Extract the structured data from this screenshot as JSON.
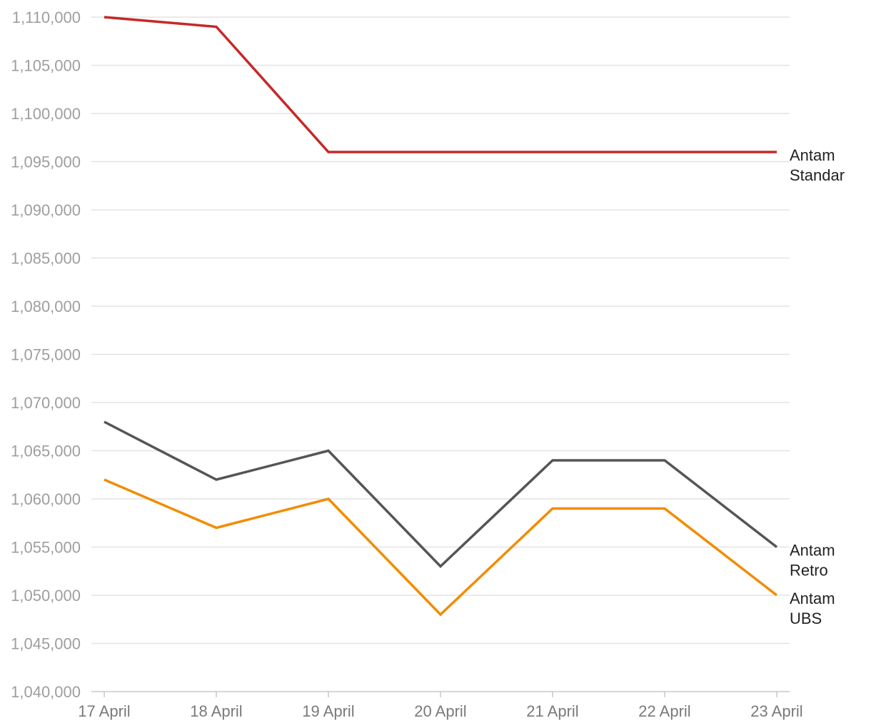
{
  "chart_data": {
    "type": "line",
    "title": "",
    "xlabel": "",
    "ylabel": "",
    "categories": [
      "17 April",
      "18 April",
      "19 April",
      "20 April",
      "21 April",
      "22 April",
      "23 April"
    ],
    "ylim": [
      1040000,
      1110000
    ],
    "yticks": [
      1040000,
      1045000,
      1050000,
      1055000,
      1060000,
      1065000,
      1070000,
      1075000,
      1080000,
      1085000,
      1090000,
      1095000,
      1100000,
      1105000,
      1110000
    ],
    "ytick_labels": [
      "1,040,000",
      "1,045,000",
      "1,050,000",
      "1,055,000",
      "1,060,000",
      "1,065,000",
      "1,070,000",
      "1,075,000",
      "1,080,000",
      "1,085,000",
      "1,090,000",
      "1,095,000",
      "1,100,000",
      "1,105,000",
      "1,110,000"
    ],
    "grid": true,
    "legend": "end-of-line labels",
    "series": [
      {
        "name": "Antam Standar",
        "label_lines": [
          "Antam",
          "Standar"
        ],
        "color": "#c62828",
        "values": [
          1110000,
          1109000,
          1096000,
          1096000,
          1096000,
          1096000,
          1096000
        ]
      },
      {
        "name": "Antam Retro",
        "label_lines": [
          "Antam",
          "Retro"
        ],
        "color": "#555555",
        "values": [
          1068000,
          1062000,
          1065000,
          1053000,
          1064000,
          1064000,
          1055000
        ]
      },
      {
        "name": "Antam UBS",
        "label_lines": [
          "Antam",
          "UBS"
        ],
        "color": "#f28c00",
        "values": [
          1062000,
          1057000,
          1060000,
          1048000,
          1059000,
          1059000,
          1050000
        ]
      }
    ]
  }
}
